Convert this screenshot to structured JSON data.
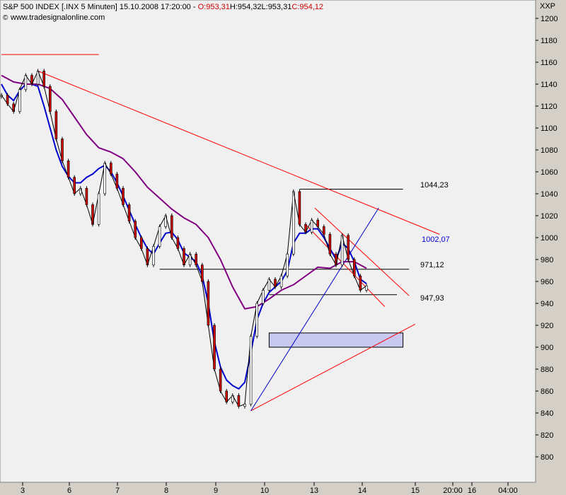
{
  "header": {
    "line1_prefix": "S&P 500 INDEX [.INX  5 Minuten] 15.10.2008 17:20:00 - ",
    "open": "O:953,31",
    "high": "H:954,32",
    "low": "L:953,31",
    "close": "C:954,12",
    "website": "www.tradesignalonline.com",
    "symbol_label": "XXP"
  },
  "colors": {
    "background": "#f0f0f0",
    "frame": "#d4d0c8",
    "ma_fast": "#0000cc",
    "ma_slow": "#800080",
    "trend_lines": "#ff0000",
    "levels": "#000000",
    "zone_fill": "#c8c8f0",
    "candle_up": "#ffffff",
    "candle_down": "#cc0000",
    "open_value": "#cc0000",
    "close_value": "#cc0000"
  },
  "chart_data": {
    "type": "line",
    "ylim": [
      780,
      1210
    ],
    "y_ticks": [
      800,
      820,
      840,
      860,
      880,
      900,
      920,
      940,
      960,
      980,
      1000,
      1020,
      1040,
      1060,
      1080,
      1100,
      1120,
      1140,
      1160,
      1180,
      1200
    ],
    "x_ticks": [
      "3",
      "6",
      "7",
      "8",
      "9",
      "10",
      "13",
      "14",
      "15",
      "20:00",
      "16",
      "04:00"
    ],
    "series": [
      {
        "style": "candles",
        "x": [
          0,
          2,
          4,
          6,
          8,
          10,
          12,
          14,
          16,
          18,
          20,
          22,
          24,
          26,
          28,
          30,
          32,
          34,
          36,
          38,
          40,
          42,
          44,
          46,
          48,
          50,
          52,
          54,
          56,
          58,
          60,
          62,
          64,
          66,
          68,
          70,
          72,
          74,
          76,
          78,
          80,
          82,
          84,
          86,
          88,
          90,
          92,
          94,
          96,
          98,
          100,
          102,
          104,
          106,
          108,
          110,
          112,
          114,
          116,
          118,
          120
        ],
        "values": [
          1130,
          1122,
          1115,
          1135,
          1148,
          1140,
          1152,
          1138,
          1115,
          1090,
          1070,
          1055,
          1040,
          1045,
          1030,
          1012,
          1040,
          1068,
          1058,
          1045,
          1030,
          1015,
          1000,
          990,
          975,
          992,
          1010,
          1020,
          1000,
          990,
          975,
          985,
          975,
          960,
          920,
          880,
          860,
          850,
          856,
          846,
          848,
          910,
          940,
          952,
          962,
          955,
          965,
          985,
          1042,
          1012,
          1005,
          1016,
          1010,
          1003,
          985,
          975,
          1002,
          980,
          965,
          952,
          956
        ]
      },
      {
        "name": "",
        "style": "ma_fast",
        "x": [
          0,
          2,
          4,
          6,
          8,
          10,
          12,
          14,
          16,
          18,
          20,
          22,
          24,
          26,
          28,
          30,
          32,
          34,
          36,
          38,
          40,
          42,
          44,
          46,
          48,
          50,
          52,
          54,
          56,
          58,
          60,
          62,
          64,
          66,
          68,
          70,
          72,
          74,
          76,
          78,
          80,
          82,
          84,
          86,
          88,
          90,
          92,
          94,
          96,
          98,
          100,
          102,
          104,
          106,
          108,
          110,
          112,
          114,
          116,
          118,
          120
        ],
        "values": [
          1140,
          1130,
          1125,
          1134,
          1140,
          1140,
          1138,
          1120,
          1100,
          1080,
          1065,
          1056,
          1050,
          1050,
          1055,
          1058,
          1063,
          1066,
          1060,
          1050,
          1038,
          1025,
          1012,
          1000,
          990,
          985,
          995,
          1004,
          1005,
          998,
          986,
          982,
          978,
          965,
          940,
          905,
          882,
          870,
          865,
          862,
          868,
          895,
          925,
          940,
          950,
          955,
          960,
          970,
          995,
          1004,
          1004,
          1008,
          1008,
          1000,
          990,
          980,
          995,
          990,
          978,
          962,
          958
        ]
      },
      {
        "name": "",
        "style": "ma_slow",
        "x": [
          0,
          4,
          8,
          12,
          16,
          20,
          24,
          28,
          32,
          36,
          40,
          44,
          48,
          52,
          56,
          60,
          64,
          68,
          72,
          76,
          80,
          84,
          88,
          92,
          96,
          100,
          104,
          108,
          112,
          116,
          120
        ],
        "values": [
          1148,
          1142,
          1140,
          1140,
          1136,
          1126,
          1110,
          1094,
          1082,
          1078,
          1072,
          1060,
          1046,
          1036,
          1026,
          1018,
          1012,
          1000,
          980,
          955,
          935,
          937,
          944,
          952,
          957,
          965,
          973,
          972,
          978,
          978,
          972
        ]
      }
    ],
    "trend_lines": [
      {
        "color": "red",
        "p1": [
          12,
          1152
        ],
        "p2": [
          144,
          1003
        ]
      },
      {
        "color": "red",
        "p1": [
          82,
          842
        ],
        "p2": [
          136,
          921
        ]
      },
      {
        "color": "red",
        "p1": [
          0,
          1167
        ],
        "p2": [
          32,
          1167
        ]
      },
      {
        "color": "red",
        "p1": [
          103,
          1027
        ],
        "p2": [
          134,
          947
        ]
      },
      {
        "color": "red",
        "p1": [
          100,
          1012
        ],
        "p2": [
          126,
          937
        ]
      },
      {
        "color": "blue",
        "p1": [
          82,
          842
        ],
        "p2": [
          124,
          1027
        ]
      }
    ],
    "levels": [
      {
        "value": 1044.23,
        "label": "1044,23",
        "x_start": 98,
        "x_end": 132
      },
      {
        "value": 1002.07,
        "label": "1002,07",
        "color": "blue"
      },
      {
        "value": 971.12,
        "label": "971,12",
        "x_start": 52,
        "x_end": 134
      },
      {
        "value": 947.93,
        "label": "947,93",
        "x_start": 88,
        "x_end": 130
      }
    ],
    "zone": {
      "low": 900,
      "high": 913,
      "x_start": 88,
      "x_end": 132
    },
    "grid": false
  }
}
